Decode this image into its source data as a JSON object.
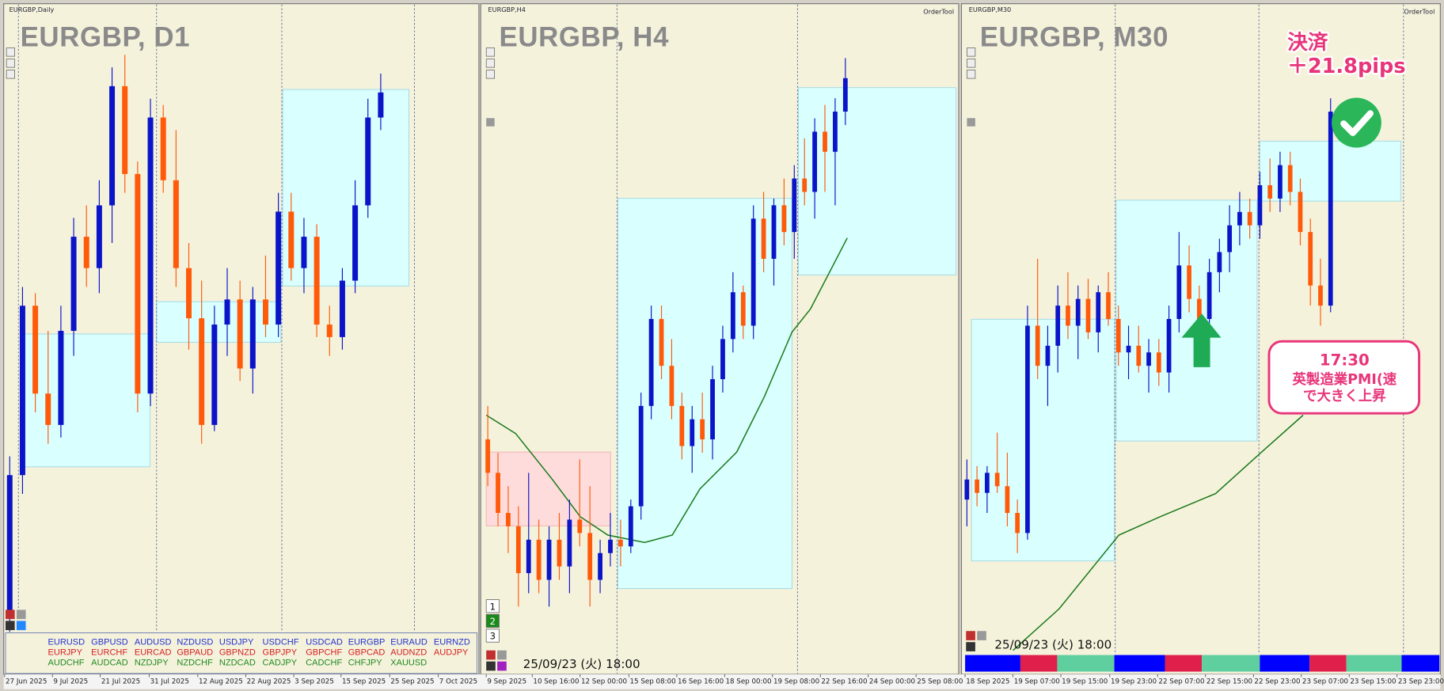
{
  "chart_data": [
    {
      "type": "candlestick",
      "label": "EURGBP,Daily",
      "title": "EURGBP, D1",
      "colors": {
        "up": "#0a14c8",
        "down": "#ff5a0a"
      },
      "xlim": [
        -0.4,
        36.6
      ],
      "ylim": [
        0,
        100
      ],
      "xticks": [
        {
          "value": -0.4,
          "label": "27 Jun 2025"
        },
        {
          "value": 3.34,
          "label": "9 Jul 2025"
        },
        {
          "value": 7.08,
          "label": "21 Jul 2025"
        },
        {
          "value": 10.9,
          "label": "31 Jul 2025"
        },
        {
          "value": 14.7,
          "label": "12 Aug 2025"
        },
        {
          "value": 18.45,
          "label": "22 Aug 2025"
        },
        {
          "value": 22.2,
          "label": "3 Sep 2025"
        },
        {
          "value": 25.9,
          "label": "15 Sep 2025"
        },
        {
          "value": 29.7,
          "label": "25 Sep 2025"
        },
        {
          "value": 33.5,
          "label": "7 Oct 2025"
        }
      ],
      "open": [
        3,
        25,
        52,
        38,
        33,
        48,
        63,
        58,
        68,
        87,
        73,
        38,
        82,
        72,
        58,
        50,
        33,
        49,
        53,
        42,
        53,
        49,
        67,
        58,
        63,
        49,
        47,
        56,
        68,
        82
      ],
      "high": [
        28,
        55,
        54,
        48,
        52,
        66,
        68,
        72,
        90,
        92,
        75,
        85,
        84,
        80,
        62,
        56,
        52,
        58,
        56,
        55,
        60,
        70,
        70,
        66,
        65,
        52,
        58,
        72,
        85,
        89
      ],
      "low": [
        0,
        22,
        35,
        30,
        31,
        44,
        55,
        54,
        62,
        70,
        35,
        36,
        70,
        55,
        45,
        30,
        32,
        44,
        40,
        38,
        47,
        47,
        56,
        54,
        47,
        44,
        45,
        54,
        66,
        80
      ],
      "close": [
        25,
        52,
        38,
        33,
        48,
        63,
        58,
        68,
        87,
        73,
        38,
        82,
        72,
        58,
        50,
        33,
        49,
        53,
        42,
        53,
        49,
        67,
        58,
        63,
        49,
        47,
        56,
        68,
        82,
        86
      ],
      "symbol_rows": [
        {
          "color": "#2233cc",
          "names": [
            "EURUSD",
            "GBPUSD",
            "AUDUSD",
            "NZDUSD",
            "USDJPY",
            "USDCHF",
            "USDCAD",
            "EURGBP",
            "EURAUD",
            "EURNZD"
          ]
        },
        {
          "color": "#d42020",
          "names": [
            "EURJPY",
            "EURCHF",
            "EURCAD",
            "GBPAUD",
            "GBPNZD",
            "GBPJPY",
            "GBPCHF",
            "GBPCAD",
            "AUDNZD",
            "AUDJPY"
          ]
        },
        {
          "color": "#1f8a1f",
          "names": [
            "AUDCHF",
            "AUDCAD",
            "NZDJPY",
            "NZDCHF",
            "NZDCAD",
            "CADJPY",
            "CADCHF",
            "CHFJPY",
            "XAUUSD"
          ]
        }
      ]
    },
    {
      "type": "candlestick",
      "label": "EURGBP,H4",
      "title": "EURGBP, H4",
      "tool": "OrderTool",
      "colors": {
        "up": "#0a14c8",
        "down": "#ff5a0a"
      },
      "xlim": [
        -0.6,
        46
      ],
      "ylim": [
        0,
        100
      ],
      "xticks": [
        {
          "value": -0.15,
          "label": "9 Sep 2025"
        },
        {
          "value": 4.35,
          "label": "10 Sep 16:00"
        },
        {
          "value": 9.04,
          "label": "12 Sep 00:00"
        },
        {
          "value": 13.81,
          "label": "15 Sep 08:00"
        },
        {
          "value": 18.5,
          "label": "16 Sep 16:00"
        },
        {
          "value": 23.18,
          "label": "18 Sep 00:00"
        },
        {
          "value": 27.87,
          "label": "19 Sep 08:00"
        },
        {
          "value": 32.55,
          "label": "22 Sep 16:00"
        },
        {
          "value": 37.24,
          "label": "24 Sep 00:00"
        },
        {
          "value": 41.92,
          "label": "25 Sep 08:00"
        }
      ],
      "open": [
        35,
        30,
        24,
        22,
        15,
        20,
        14,
        20,
        16,
        23,
        21,
        14,
        18,
        20,
        19,
        25,
        40,
        53,
        46,
        40,
        34,
        38,
        35,
        44,
        50,
        57,
        52,
        68,
        62,
        70,
        66,
        74,
        72,
        81,
        78,
        84
      ],
      "high": [
        40,
        33,
        28,
        25,
        30,
        23,
        22,
        24,
        26,
        32,
        28,
        20,
        24,
        23,
        26,
        42,
        55,
        55,
        50,
        42,
        40,
        42,
        46,
        52,
        60,
        58,
        70,
        72,
        71,
        74,
        76,
        80,
        83,
        85,
        86,
        92
      ],
      "low": [
        28,
        22,
        18,
        10,
        12,
        12,
        10,
        14,
        12,
        19,
        10,
        12,
        16,
        16,
        18,
        23,
        38,
        44,
        38,
        32,
        30,
        33,
        32,
        42,
        48,
        50,
        50,
        60,
        58,
        64,
        62,
        70,
        68,
        72,
        70,
        82
      ],
      "close": [
        30,
        24,
        22,
        15,
        20,
        14,
        20,
        16,
        23,
        21,
        14,
        18,
        20,
        19,
        25,
        40,
        53,
        46,
        40,
        34,
        38,
        35,
        44,
        50,
        57,
        52,
        68,
        62,
        70,
        66,
        74,
        72,
        81,
        78,
        84,
        89
      ],
      "buttons": [
        "1",
        "2",
        "3"
      ],
      "timestamp": "25/09/23 (火) 18:00"
    },
    {
      "type": "candlestick",
      "label": "EURGBP,M30",
      "title": "EURGBP, M30",
      "tool": "OrderTool",
      "colors": {
        "up": "#0a14c8",
        "down": "#ff5a0a"
      },
      "xlim": [
        -0.45,
        46.77
      ],
      "ylim": [
        0,
        100
      ],
      "xticks": [
        {
          "value": -0.18,
          "label": "18 Sep 2025"
        },
        {
          "value": 4.56,
          "label": "19 Sep 07:00"
        },
        {
          "value": 9.3,
          "label": "19 Sep 15:00"
        },
        {
          "value": 14.14,
          "label": "19 Sep 23:00"
        },
        {
          "value": 18.88,
          "label": "22 Sep 07:00"
        },
        {
          "value": 23.62,
          "label": "22 Sep 15:00"
        },
        {
          "value": 28.36,
          "label": "22 Sep 23:00"
        },
        {
          "value": 33.1,
          "label": "23 Sep 07:00"
        },
        {
          "value": 37.84,
          "label": "23 Sep 15:00"
        },
        {
          "value": 42.58,
          "label": "23 Sep 23:00"
        }
      ],
      "open": [
        26,
        29,
        27,
        30,
        28,
        24,
        21,
        52,
        46,
        49,
        55,
        52,
        56,
        51,
        57,
        53,
        48,
        49,
        46,
        48,
        45,
        53,
        61,
        56,
        53,
        60,
        63,
        67,
        69,
        67,
        73,
        71,
        76,
        72,
        66,
        58,
        55
      ],
      "high": [
        32,
        31,
        31,
        36,
        33,
        26,
        55,
        62,
        52,
        58,
        60,
        58,
        59,
        58,
        60,
        55,
        52,
        52,
        50,
        50,
        55,
        66,
        64,
        58,
        62,
        65,
        70,
        72,
        71,
        75,
        77,
        78,
        78,
        74,
        68,
        62,
        86
      ],
      "low": [
        22,
        25,
        24,
        27,
        22,
        18,
        20,
        44,
        40,
        45,
        50,
        47,
        50,
        48,
        52,
        46,
        44,
        45,
        42,
        43,
        42,
        51,
        54,
        50,
        51,
        57,
        60,
        64,
        65,
        65,
        69,
        69,
        70,
        64,
        55,
        52,
        54
      ],
      "close": [
        29,
        27,
        30,
        28,
        24,
        21,
        52,
        46,
        49,
        55,
        52,
        56,
        51,
        57,
        53,
        48,
        49,
        46,
        48,
        45,
        53,
        61,
        56,
        53,
        60,
        63,
        67,
        69,
        67,
        73,
        71,
        76,
        72,
        66,
        58,
        55,
        84
      ],
      "timestamp": "25/09/23 (火) 18:00",
      "annotations": {
        "result": "決済",
        "pips": "＋21.8pips",
        "time": "17:30",
        "event": "英製造業PMI(速",
        "move": "で大きく上昇"
      }
    }
  ]
}
